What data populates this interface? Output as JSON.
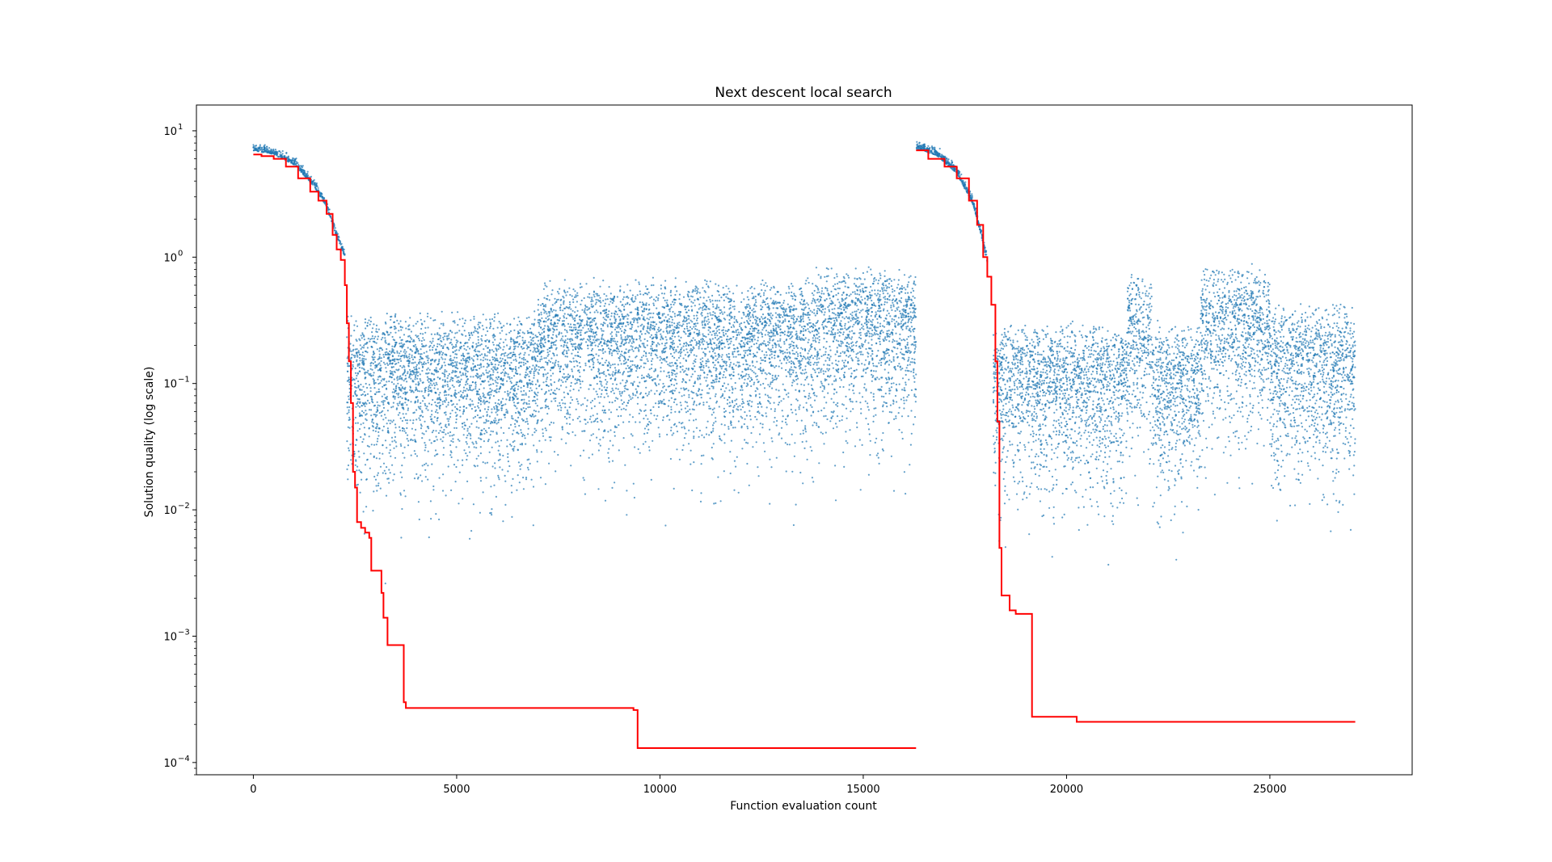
{
  "chart_data": {
    "type": "scatter",
    "title": "Next descent local search",
    "xlabel": "Function evaluation count",
    "ylabel": "Solution quality (log scale)",
    "xlim": [
      -1400,
      28500
    ],
    "ylim": [
      8e-05,
      16
    ],
    "yscale": "log",
    "grid": false,
    "legend": "none",
    "x_ticks": [
      {
        "value": 0,
        "label": "0"
      },
      {
        "value": 5000,
        "label": "5000"
      },
      {
        "value": 10000,
        "label": "10000"
      },
      {
        "value": 15000,
        "label": "15000"
      },
      {
        "value": 20000,
        "label": "20000"
      },
      {
        "value": 25000,
        "label": "25000"
      }
    ],
    "y_ticks": [
      {
        "value": 0.0001,
        "base": "10",
        "exp": "−4"
      },
      {
        "value": 0.001,
        "base": "10",
        "exp": "−3"
      },
      {
        "value": 0.01,
        "base": "10",
        "exp": "−2"
      },
      {
        "value": 0.1,
        "base": "10",
        "exp": "−1"
      },
      {
        "value": 1,
        "base": "10",
        "exp": "0"
      },
      {
        "value": 10,
        "base": "10",
        "exp": "1"
      }
    ],
    "series": [
      {
        "kind": "scatter",
        "color": "#1f77b4",
        "description_points": "candidate evaluations",
        "runs": [
          {
            "descent_x": [
              0,
              500,
              1000,
              1500,
              1800,
              2000,
              2150,
              2250
            ],
            "descent_y": [
              7.0,
              6.5,
              5.4,
              3.6,
              2.5,
              1.6,
              1.2,
              1.0
            ],
            "cloud_x_range": [
              2300,
              16300
            ],
            "cloud_segments": [
              {
                "x": [
                  2300,
                  7000
                ],
                "center": 0.3
              },
              {
                "x": [
                  7000,
                  13800
                ],
                "center": 0.55
              },
              {
                "x": [
                  13800,
                  16300
                ],
                "center": 0.7
              }
            ]
          },
          {
            "descent_x": [
              16300,
              16800,
              17300,
              17700,
              17900,
              18050
            ],
            "descent_y": [
              7.2,
              6.4,
              4.6,
              2.6,
              1.5,
              0.9
            ],
            "cloud_x_range": [
              18200,
              27100
            ],
            "cloud_segments": [
              {
                "x": [
                  18200,
                  21500
                ],
                "center": 0.25
              },
              {
                "x": [
                  21500,
                  22100
                ],
                "center": 0.6
              },
              {
                "x": [
                  22100,
                  23300
                ],
                "center": 0.25
              },
              {
                "x": [
                  23300,
                  25000
                ],
                "center": 0.7
              },
              {
                "x": [
                  25000,
                  27100
                ],
                "center": 0.35
              }
            ]
          }
        ]
      },
      {
        "kind": "line",
        "color": "#ff0000",
        "description": "best-so-far",
        "runs": [
          {
            "x": [
              0,
              200,
              500,
              800,
              1100,
              1400,
              1600,
              1800,
              1950,
              2050,
              2150,
              2250,
              2300,
              2350,
              2400,
              2450,
              2500,
              2550,
              2650,
              2750,
              2850,
              2900,
              3000,
              3150,
              3200,
              3300,
              3400,
              3700,
              3750,
              3800,
              9350,
              9450,
              16300
            ],
            "y": [
              6.5,
              6.3,
              6.0,
              5.2,
              4.2,
              3.3,
              2.8,
              2.2,
              1.5,
              1.15,
              0.95,
              0.6,
              0.3,
              0.15,
              0.07,
              0.02,
              0.015,
              0.008,
              0.0072,
              0.0066,
              0.006,
              0.0033,
              0.0033,
              0.0022,
              0.0014,
              0.00085,
              0.00085,
              0.0003,
              0.00027,
              0.00027,
              0.00026,
              0.00013,
              0.00013
            ]
          },
          {
            "x": [
              16300,
              16600,
              17000,
              17300,
              17600,
              17800,
              17950,
              18050,
              18150,
              18250,
              18300,
              18350,
              18400,
              18500,
              18600,
              18700,
              18750,
              19100,
              19150,
              20200,
              20250,
              27100
            ],
            "y": [
              7.0,
              6.0,
              5.2,
              4.2,
              2.8,
              1.8,
              1.0,
              0.7,
              0.42,
              0.15,
              0.05,
              0.005,
              0.0021,
              0.0021,
              0.0016,
              0.0016,
              0.0015,
              0.0015,
              0.00023,
              0.00023,
              0.00021,
              0.00021
            ]
          }
        ]
      }
    ]
  }
}
